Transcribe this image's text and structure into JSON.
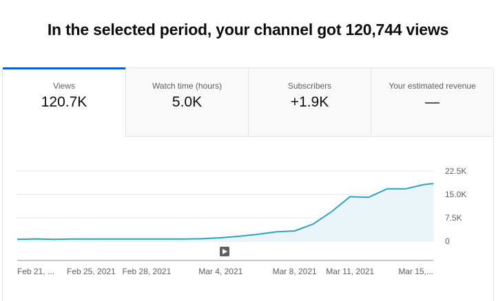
{
  "headline": "In the selected period, your channel got 120,744 views",
  "tabs": [
    {
      "label": "Views",
      "value": "120.7K",
      "active": true
    },
    {
      "label": "Watch time (hours)",
      "value": "5.0K",
      "active": false
    },
    {
      "label": "Subscribers",
      "value": "+1.9K",
      "active": false
    },
    {
      "label": "Your estimated revenue",
      "value": "—",
      "active": false
    }
  ],
  "colors": {
    "accent": "#065fd4",
    "line": "#2ba1c6",
    "area": "#eaf5fa"
  },
  "icons": {
    "marker": "play-icon"
  },
  "chart_data": {
    "type": "area",
    "title": "",
    "xlabel": "",
    "ylabel": "",
    "ylim": [
      0,
      22500
    ],
    "y_ticks": [
      "22.5K",
      "15.0K",
      "7.5K",
      "0"
    ],
    "y_tick_values": [
      22500,
      15000,
      7500,
      0
    ],
    "x_tick_labels": [
      "Feb 21, ...",
      "Feb 25, 2021",
      "Feb 28, 2021",
      "Mar 4, 2021",
      "Mar 8, 2021",
      "Mar 11, 2021",
      "Mar 15,..."
    ],
    "x_tick_days": [
      0,
      4,
      7,
      11,
      15,
      18,
      22
    ],
    "x_range_days": [
      0,
      22.5
    ],
    "grid": true,
    "series": [
      {
        "days": [
          0,
          1,
          2,
          3,
          4,
          5,
          6,
          7,
          8,
          9,
          10,
          11,
          12,
          13,
          14,
          15,
          16,
          17,
          18,
          19,
          20,
          21,
          22,
          22.5
        ],
        "values": [
          600,
          750,
          600,
          700,
          720,
          700,
          700,
          700,
          700,
          700,
          800,
          1100,
          1600,
          2200,
          3000,
          3300,
          5500,
          9500,
          14300,
          14100,
          16800,
          16800,
          18200,
          18500
        ]
      }
    ]
  }
}
